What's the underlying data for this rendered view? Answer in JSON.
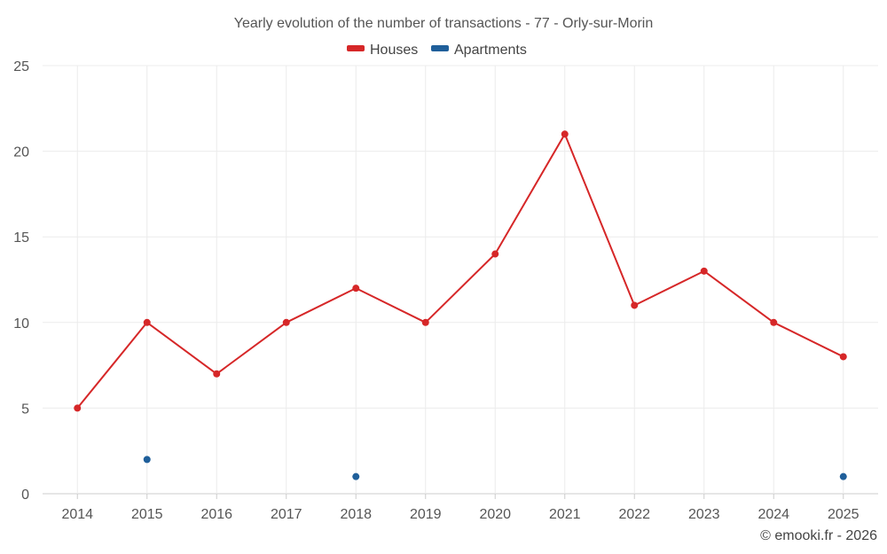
{
  "chart_data": {
    "type": "line",
    "title": "Yearly evolution of the number of transactions - 77 - Orly-sur-Morin",
    "categories": [
      "2014",
      "2015",
      "2016",
      "2017",
      "2018",
      "2019",
      "2020",
      "2021",
      "2022",
      "2023",
      "2024",
      "2025"
    ],
    "series": [
      {
        "name": "Houses",
        "color": "#d62728",
        "values": [
          5,
          10,
          7,
          10,
          12,
          10,
          14,
          21,
          11,
          13,
          10,
          8
        ]
      },
      {
        "name": "Apartments",
        "color": "#1f5f9a",
        "values": [
          null,
          2,
          null,
          null,
          1,
          null,
          null,
          null,
          null,
          null,
          null,
          1
        ]
      }
    ],
    "ylim": [
      0,
      25
    ],
    "yticks": [
      "0",
      "5",
      "10",
      "15",
      "20",
      "25"
    ],
    "grid": true,
    "legend_position": "top-center"
  },
  "credit": "© emooki.fr - 2026"
}
